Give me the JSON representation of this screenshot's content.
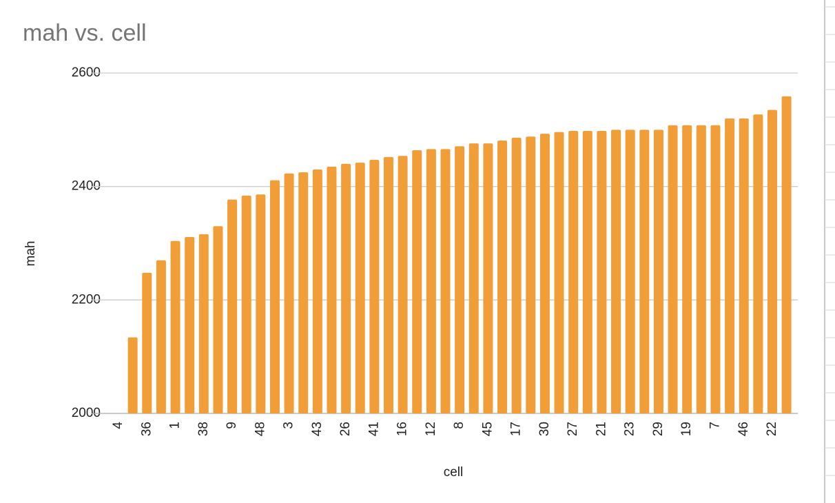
{
  "chart_data": {
    "type": "bar",
    "title": "mah vs. cell",
    "x_label": "cell",
    "y_label": "mah",
    "categories": [
      "4",
      null,
      "36",
      null,
      "1",
      null,
      "38",
      null,
      "9",
      null,
      "48",
      null,
      "3",
      null,
      "43",
      null,
      "26",
      null,
      "41",
      null,
      "16",
      null,
      "12",
      null,
      "8",
      null,
      "45",
      null,
      "17",
      null,
      "30",
      null,
      "27",
      null,
      "21",
      null,
      "23",
      null,
      "29",
      null,
      "19",
      null,
      "7",
      null,
      "46",
      null,
      "22",
      null
    ],
    "values": [
      null,
      2134,
      2248,
      2270,
      2304,
      2311,
      2316,
      2330,
      2377,
      2384,
      2386,
      2411,
      2423,
      2425,
      2430,
      2435,
      2440,
      2442,
      2447,
      2452,
      2454,
      2464,
      2466,
      2466,
      2471,
      2476,
      2476,
      2481,
      2486,
      2488,
      2493,
      2496,
      2498,
      2498,
      2498,
      2500,
      2500,
      2500,
      2500,
      2508,
      2508,
      2508,
      2508,
      2520,
      2520,
      2527,
      2535,
      2559
    ],
    "color": "#f19e38",
    "ylim": [
      2000,
      2600
    ],
    "yticks": [
      2000,
      2200,
      2400,
      2600
    ],
    "grid": true
  }
}
